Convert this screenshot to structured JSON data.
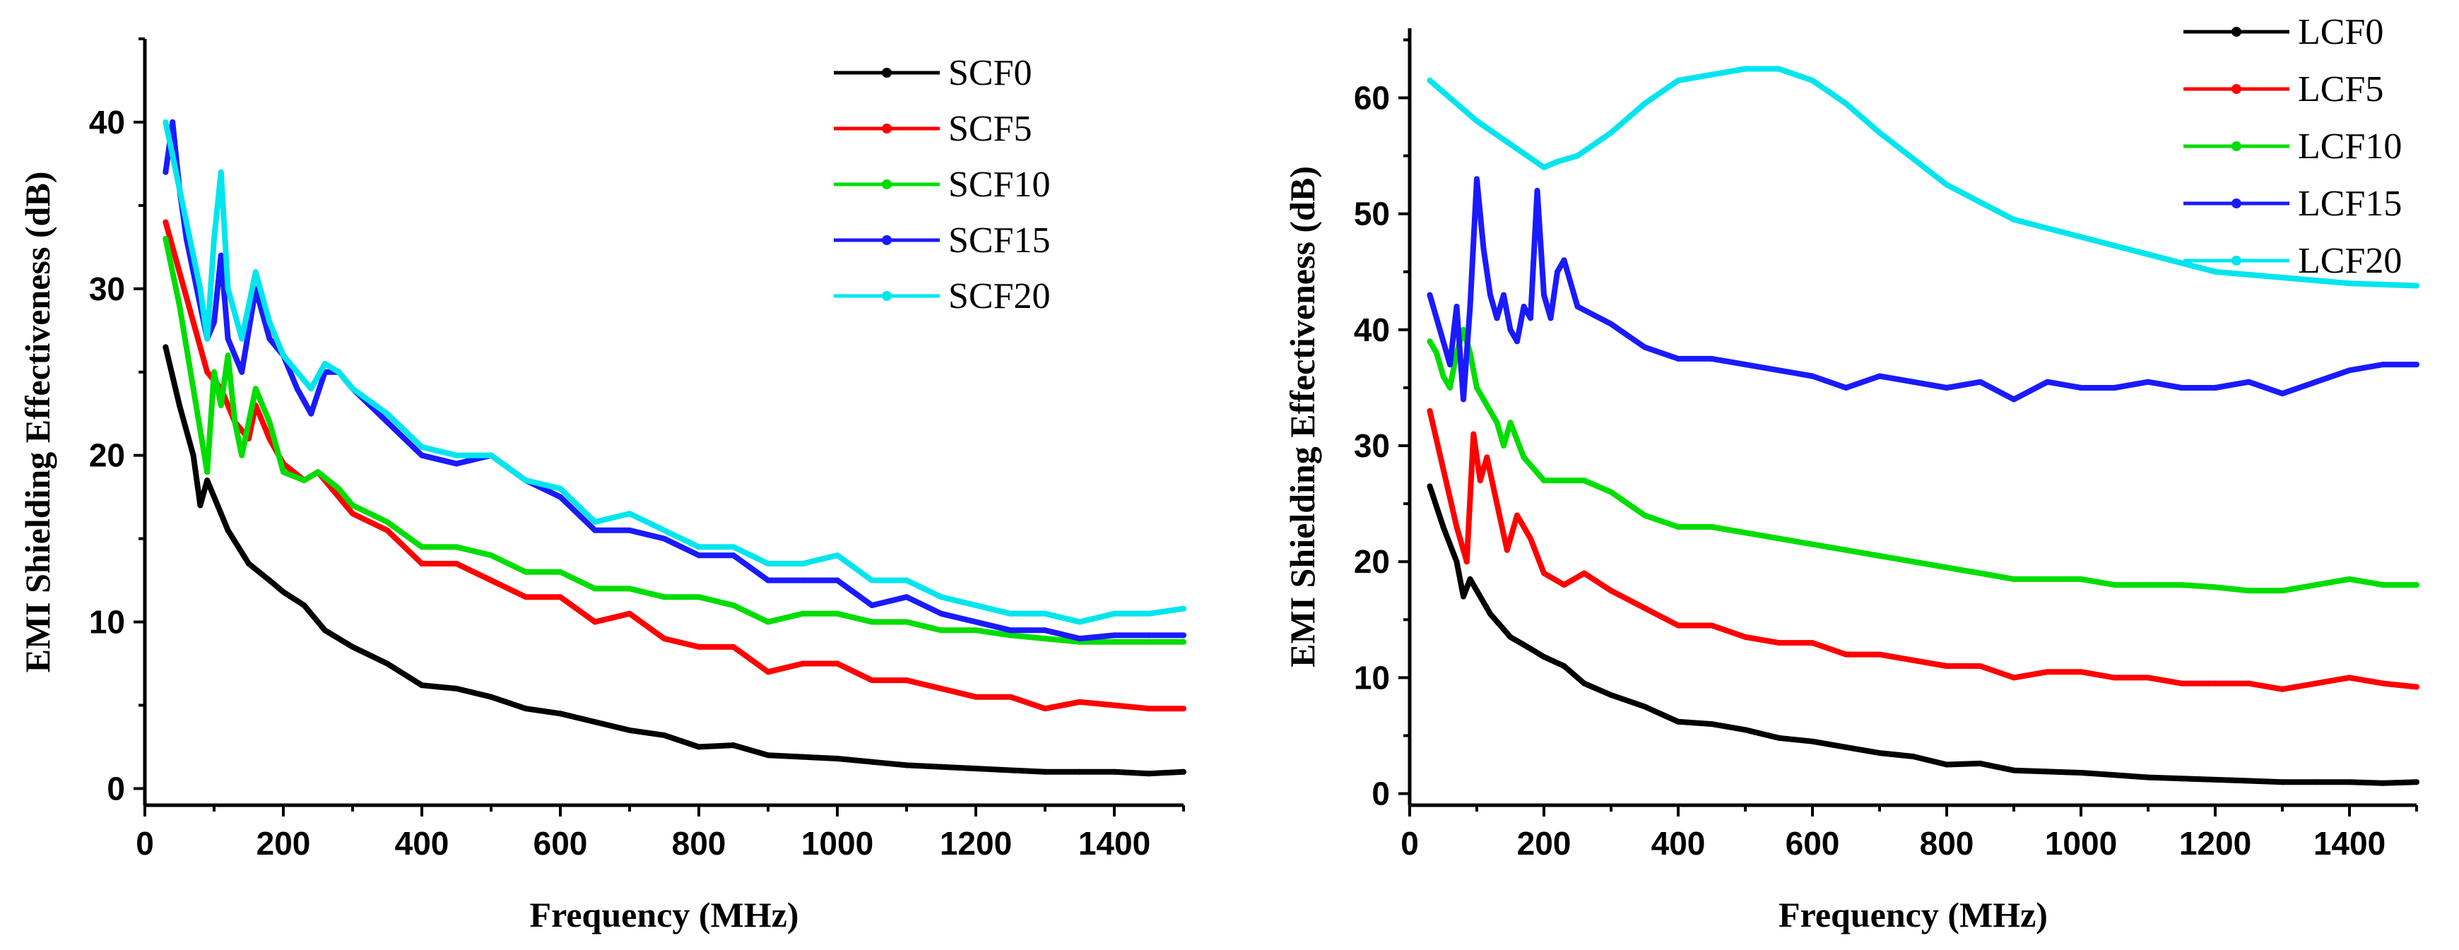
{
  "chart_data": [
    {
      "type": "line",
      "panel": "left",
      "xlabel": "Frequency (MHz)",
      "ylabel": "EMI Shielding Effectiveness (dB)",
      "xlim": [
        0,
        1500
      ],
      "ylim": [
        -1,
        45
      ],
      "xticks": [
        0,
        200,
        400,
        600,
        800,
        1000,
        1200,
        1400
      ],
      "yticks": [
        0,
        10,
        20,
        30,
        40
      ],
      "legend_position": "top-right",
      "series": [
        {
          "name": "SCF0",
          "color": "#000000",
          "x": [
            30,
            50,
            70,
            80,
            90,
            100,
            120,
            150,
            180,
            200,
            230,
            260,
            300,
            350,
            400,
            450,
            500,
            550,
            600,
            650,
            700,
            750,
            800,
            850,
            900,
            950,
            1000,
            1050,
            1100,
            1150,
            1200,
            1250,
            1300,
            1350,
            1400,
            1450,
            1500
          ],
          "y": [
            26.5,
            23,
            20,
            17,
            18.5,
            17.5,
            15.5,
            13.5,
            12.5,
            11.8,
            11,
            9.5,
            8.5,
            7.5,
            6.2,
            6,
            5.5,
            4.8,
            4.5,
            4,
            3.5,
            3.2,
            2.5,
            2.6,
            2,
            1.9,
            1.8,
            1.6,
            1.4,
            1.3,
            1.2,
            1.1,
            1,
            1.0,
            1.0,
            0.9,
            1.0
          ]
        },
        {
          "name": "SCF5",
          "color": "#ff0000",
          "x": [
            30,
            50,
            70,
            90,
            110,
            130,
            150,
            160,
            180,
            200,
            230,
            250,
            270,
            300,
            350,
            400,
            450,
            500,
            550,
            600,
            650,
            700,
            750,
            800,
            850,
            900,
            950,
            1000,
            1050,
            1100,
            1150,
            1200,
            1250,
            1300,
            1350,
            1400,
            1450,
            1500
          ],
          "y": [
            34,
            31,
            28,
            25,
            24,
            22,
            21,
            23,
            21,
            19.5,
            18.5,
            19,
            18,
            16.5,
            15.5,
            13.5,
            13.5,
            12.5,
            11.5,
            11.5,
            10,
            10.5,
            9,
            8.5,
            8.5,
            7,
            7.5,
            7.5,
            6.5,
            6.5,
            6,
            5.5,
            5.5,
            4.8,
            5.2,
            5.0,
            4.8,
            4.8
          ]
        },
        {
          "name": "SCF10",
          "color": "#00dd00",
          "x": [
            30,
            50,
            70,
            90,
            100,
            110,
            120,
            130,
            140,
            160,
            180,
            200,
            230,
            250,
            280,
            300,
            350,
            400,
            450,
            500,
            550,
            600,
            650,
            700,
            750,
            800,
            850,
            900,
            950,
            1000,
            1050,
            1100,
            1150,
            1200,
            1250,
            1300,
            1350,
            1400,
            1450,
            1500
          ],
          "y": [
            33,
            29,
            24,
            19,
            25,
            23,
            26,
            22,
            20,
            24,
            22,
            19,
            18.5,
            19,
            18,
            17,
            16,
            14.5,
            14.5,
            14,
            13,
            13,
            12,
            12,
            11.5,
            11.5,
            11,
            10,
            10.5,
            10.5,
            10,
            10,
            9.5,
            9.5,
            9.2,
            9,
            8.8,
            8.8,
            8.8,
            8.8
          ]
        },
        {
          "name": "SCF15",
          "color": "#1a1aff",
          "x": [
            30,
            40,
            50,
            60,
            70,
            80,
            90,
            100,
            110,
            120,
            140,
            160,
            180,
            200,
            220,
            240,
            260,
            280,
            300,
            350,
            400,
            450,
            500,
            550,
            600,
            650,
            700,
            750,
            800,
            850,
            900,
            950,
            1000,
            1050,
            1100,
            1150,
            1200,
            1250,
            1300,
            1350,
            1400,
            1450,
            1500
          ],
          "y": [
            37,
            40,
            36,
            33,
            31,
            29,
            27,
            28,
            32,
            27,
            25,
            30,
            27,
            26,
            24,
            22.5,
            25,
            25,
            24,
            22,
            20,
            19.5,
            20,
            18.5,
            17.5,
            15.5,
            15.5,
            15,
            14,
            14,
            12.5,
            12.5,
            12.5,
            11,
            11.5,
            10.5,
            10,
            9.5,
            9.5,
            9,
            9.2,
            9.2,
            9.2
          ]
        },
        {
          "name": "SCF20",
          "color": "#00e5ee",
          "x": [
            30,
            40,
            50,
            60,
            70,
            80,
            90,
            100,
            110,
            120,
            140,
            160,
            180,
            200,
            220,
            240,
            260,
            280,
            300,
            350,
            400,
            450,
            500,
            550,
            600,
            650,
            700,
            750,
            800,
            850,
            900,
            950,
            1000,
            1050,
            1100,
            1150,
            1200,
            1250,
            1300,
            1350,
            1400,
            1450,
            1500
          ],
          "y": [
            40,
            38,
            36,
            34,
            32,
            30,
            27,
            33,
            37,
            30,
            27,
            31,
            28,
            26,
            25,
            24,
            25.5,
            25,
            24,
            22.5,
            20.5,
            20,
            20,
            18.5,
            18,
            16,
            16.5,
            15.5,
            14.5,
            14.5,
            13.5,
            13.5,
            14,
            12.5,
            12.5,
            11.5,
            11,
            10.5,
            10.5,
            10,
            10.5,
            10.5,
            10.8
          ]
        }
      ]
    },
    {
      "type": "line",
      "panel": "right",
      "xlabel": "Frequency (MHz)",
      "ylabel": "EMI Shielding Effectiveness (dB)",
      "xlim": [
        0,
        1500
      ],
      "ylim": [
        -1,
        66
      ],
      "xticks": [
        0,
        200,
        400,
        600,
        800,
        1000,
        1200,
        1400
      ],
      "yticks": [
        0,
        10,
        20,
        30,
        40,
        50,
        60
      ],
      "legend_position": "top-right",
      "series": [
        {
          "name": "LCF0",
          "color": "#000000",
          "x": [
            30,
            50,
            70,
            80,
            90,
            100,
            120,
            150,
            180,
            200,
            230,
            260,
            300,
            350,
            400,
            450,
            500,
            550,
            600,
            650,
            700,
            750,
            800,
            850,
            900,
            950,
            1000,
            1050,
            1100,
            1150,
            1200,
            1250,
            1300,
            1350,
            1400,
            1450,
            1500
          ],
          "y": [
            26.5,
            23,
            20,
            17,
            18.5,
            17.5,
            15.5,
            13.5,
            12.5,
            11.8,
            11,
            9.5,
            8.5,
            7.5,
            6.2,
            6,
            5.5,
            4.8,
            4.5,
            4,
            3.5,
            3.2,
            2.5,
            2.6,
            2,
            1.9,
            1.8,
            1.6,
            1.4,
            1.3,
            1.2,
            1.1,
            1,
            1.0,
            1.0,
            0.9,
            1.0
          ]
        },
        {
          "name": "LCF5",
          "color": "#ff0000",
          "x": [
            30,
            50,
            70,
            85,
            95,
            105,
            115,
            130,
            145,
            160,
            180,
            200,
            230,
            260,
            300,
            350,
            400,
            450,
            500,
            550,
            600,
            650,
            700,
            750,
            800,
            850,
            900,
            950,
            1000,
            1050,
            1100,
            1150,
            1200,
            1250,
            1300,
            1350,
            1400,
            1450,
            1500
          ],
          "y": [
            33,
            28,
            23,
            20,
            31,
            27,
            29,
            25,
            21,
            24,
            22,
            19,
            18,
            19,
            17.5,
            16,
            14.5,
            14.5,
            13.5,
            13,
            13,
            12,
            12,
            11.5,
            11,
            11,
            10,
            10.5,
            10.5,
            10,
            10,
            9.5,
            9.5,
            9.5,
            9,
            9.5,
            10,
            9.5,
            9.2
          ]
        },
        {
          "name": "LCF10",
          "color": "#00dd00",
          "x": [
            30,
            40,
            50,
            60,
            70,
            80,
            90,
            100,
            110,
            120,
            130,
            140,
            150,
            170,
            200,
            230,
            260,
            300,
            350,
            400,
            450,
            500,
            550,
            600,
            650,
            700,
            750,
            800,
            850,
            900,
            950,
            1000,
            1050,
            1100,
            1150,
            1200,
            1250,
            1300,
            1350,
            1400,
            1450,
            1500
          ],
          "y": [
            39,
            38,
            36,
            35,
            38,
            40,
            38,
            35,
            34,
            33,
            32,
            30,
            32,
            29,
            27,
            27,
            27,
            26,
            24,
            23,
            23,
            22.5,
            22,
            21.5,
            21,
            20.5,
            20,
            19.5,
            19,
            18.5,
            18.5,
            18.5,
            18,
            18,
            18,
            17.8,
            17.5,
            17.5,
            18,
            18.5,
            18,
            18
          ]
        },
        {
          "name": "LCF15",
          "color": "#1a1aff",
          "x": [
            30,
            40,
            50,
            60,
            70,
            80,
            90,
            100,
            110,
            120,
            130,
            140,
            150,
            160,
            170,
            180,
            190,
            200,
            210,
            220,
            230,
            250,
            300,
            350,
            400,
            450,
            500,
            550,
            600,
            650,
            700,
            750,
            800,
            850,
            900,
            950,
            1000,
            1050,
            1100,
            1150,
            1200,
            1250,
            1300,
            1350,
            1400,
            1450,
            1500
          ],
          "y": [
            43,
            41,
            39,
            37,
            42,
            34,
            42,
            53,
            47,
            43,
            41,
            43,
            40,
            39,
            42,
            41,
            52,
            43,
            41,
            45,
            46,
            42,
            40.5,
            38.5,
            37.5,
            37.5,
            37,
            36.5,
            36,
            35,
            36,
            35.5,
            35,
            35.5,
            34,
            35.5,
            35,
            35,
            35.5,
            35,
            35,
            35.5,
            34.5,
            35.5,
            36.5,
            37,
            37
          ]
        },
        {
          "name": "LCF20",
          "color": "#00e5ee",
          "x": [
            30,
            60,
            100,
            150,
            200,
            220,
            250,
            300,
            350,
            400,
            450,
            500,
            550,
            600,
            650,
            700,
            800,
            900,
            1000,
            1100,
            1200,
            1300,
            1400,
            1500
          ],
          "y": [
            61.5,
            60,
            58,
            56,
            54,
            54.5,
            55,
            57,
            59.5,
            61.5,
            62,
            62.5,
            62.5,
            61.5,
            59.5,
            57,
            52.5,
            49.5,
            48,
            46.5,
            45,
            44.5,
            44,
            43.8
          ]
        }
      ]
    }
  ]
}
